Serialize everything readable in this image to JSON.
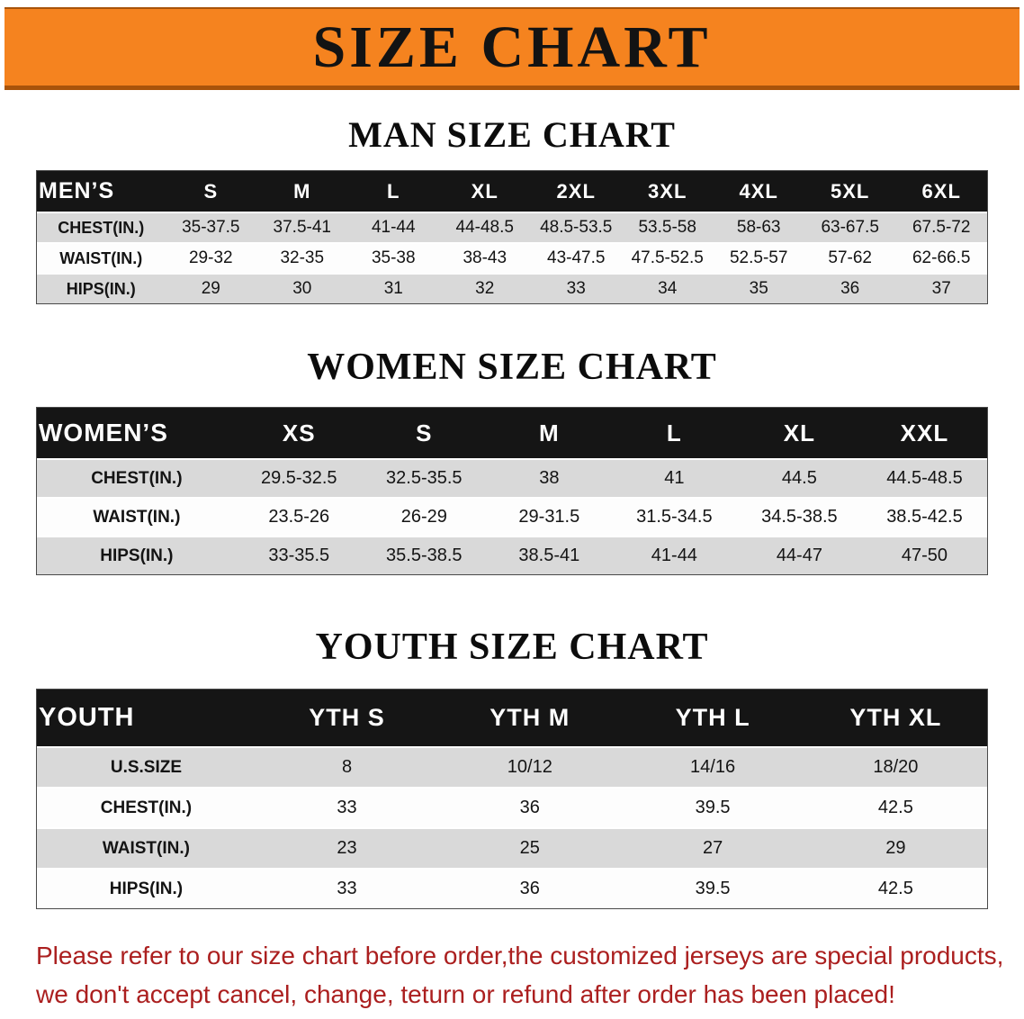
{
  "banner": {
    "title": "SIZE CHART"
  },
  "colors": {
    "banner_bg": "#f5831f",
    "banner_border": "#a8530a",
    "table_header_bg": "#151515",
    "row_alt_bg": "#d9d9d9",
    "disclaimer_color": "#ab1f1f"
  },
  "sections": [
    {
      "id": "men",
      "heading": "MAN SIZE CHART",
      "table": {
        "header": [
          "MEN’S",
          "S",
          "M",
          "L",
          "XL",
          "2XL",
          "3XL",
          "4XL",
          "5XL",
          "6XL"
        ],
        "rows": [
          [
            "CHEST(IN.)",
            "35-37.5",
            "37.5-41",
            "41-44",
            "44-48.5",
            "48.5-53.5",
            "53.5-58",
            "58-63",
            "63-67.5",
            "67.5-72"
          ],
          [
            "WAIST(IN.)",
            "29-32",
            "32-35",
            "35-38",
            "38-43",
            "43-47.5",
            "47.5-52.5",
            "52.5-57",
            "57-62",
            "62-66.5"
          ],
          [
            "HIPS(IN.)",
            "29",
            "30",
            "31",
            "32",
            "33",
            "34",
            "35",
            "36",
            "37"
          ]
        ]
      }
    },
    {
      "id": "women",
      "heading": "WOMEN SIZE CHART",
      "table": {
        "header": [
          "WOMEN’S",
          "XS",
          "S",
          "M",
          "L",
          "XL",
          "XXL"
        ],
        "rows": [
          [
            "CHEST(IN.)",
            "29.5-32.5",
            "32.5-35.5",
            "38",
            "41",
            "44.5",
            "44.5-48.5"
          ],
          [
            "WAIST(IN.)",
            "23.5-26",
            "26-29",
            "29-31.5",
            "31.5-34.5",
            "34.5-38.5",
            "38.5-42.5"
          ],
          [
            "HIPS(IN.)",
            "33-35.5",
            "35.5-38.5",
            "38.5-41",
            "41-44",
            "44-47",
            "47-50"
          ]
        ]
      }
    },
    {
      "id": "youth",
      "heading": "YOUTH SIZE CHART",
      "table": {
        "header": [
          "YOUTH",
          "YTH S",
          "YTH M",
          "YTH L",
          "YTH XL"
        ],
        "rows": [
          [
            "U.S.SIZE",
            "8",
            "10/12",
            "14/16",
            "18/20"
          ],
          [
            "CHEST(IN.)",
            "33",
            "36",
            "39.5",
            "42.5"
          ],
          [
            "WAIST(IN.)",
            "23",
            "25",
            "27",
            "29"
          ],
          [
            "HIPS(IN.)",
            "33",
            "36",
            "39.5",
            "42.5"
          ]
        ]
      }
    }
  ],
  "disclaimer": {
    "line1": "Please refer to our size chart before order,the customized jerseys are special products,",
    "line2": "we don't accept cancel, change, teturn or refund after order has been placed!"
  }
}
